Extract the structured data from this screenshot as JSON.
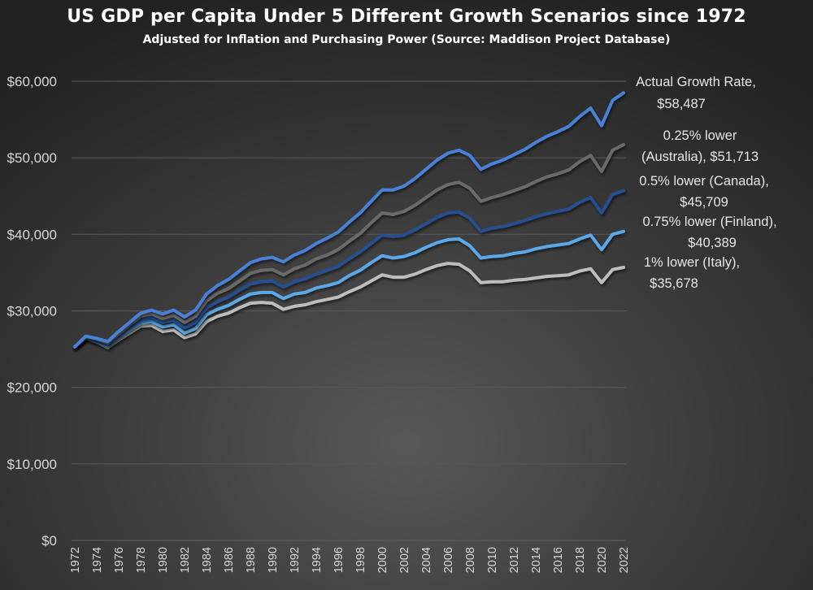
{
  "chart_data": {
    "type": "line",
    "title": "US GDP per Capita Under 5 Different Growth Scenarios since 1972",
    "subtitle": "Adjusted for Inflation and Purchasing Power (Source: Maddison Project Database)",
    "xlabel": "",
    "ylabel": "",
    "ylim": [
      0,
      60000
    ],
    "yticks": [
      0,
      10000,
      20000,
      30000,
      40000,
      50000,
      60000
    ],
    "ytick_labels": [
      "$0",
      "$10,000",
      "$20,000",
      "$30,000",
      "$40,000",
      "$50,000",
      "$60,000"
    ],
    "xlim": [
      1972,
      2022
    ],
    "xtick_labels": [
      "1972",
      "1974",
      "1976",
      "1978",
      "1980",
      "1982",
      "1984",
      "1986",
      "1988",
      "1990",
      "1992",
      "1994",
      "1996",
      "1998",
      "2000",
      "2002",
      "2004",
      "2006",
      "2008",
      "2010",
      "2012",
      "2014",
      "2016",
      "2018",
      "2020",
      "2022"
    ],
    "grid": true,
    "legend": "none (end-of-line data labels on the right)",
    "x_start": 1972,
    "series": [
      {
        "name": "Actual Growth Rate",
        "color": "#4a80d8",
        "label_lines": [
          "Actual Growth Rate,",
          "$58,487"
        ],
        "values": [
          25300,
          26700,
          26400,
          26000,
          27300,
          28500,
          29700,
          30100,
          29600,
          30100,
          29200,
          30100,
          32200,
          33300,
          34100,
          35200,
          36300,
          36800,
          37000,
          36400,
          37300,
          37900,
          38800,
          39500,
          40300,
          41600,
          42800,
          44300,
          45800,
          45800,
          46300,
          47300,
          48500,
          49700,
          50600,
          51000,
          50300,
          48500,
          49200,
          49700,
          50400,
          51100,
          52000,
          52800,
          53400,
          54100,
          55400,
          56500,
          54200,
          57500,
          58487
        ]
      },
      {
        "name": "0.25% lower (Australia)",
        "color": "#6a6a6a",
        "label_lines": [
          "0.25% lower",
          "(Australia), $51,713"
        ],
        "values": [
          25300,
          26600,
          26300,
          25800,
          27000,
          28200,
          29300,
          29600,
          29000,
          29400,
          28500,
          29300,
          31300,
          32300,
          32900,
          33900,
          34900,
          35300,
          35400,
          34700,
          35500,
          36000,
          36800,
          37300,
          38000,
          39100,
          40100,
          41500,
          42800,
          42600,
          43000,
          43800,
          44800,
          45800,
          46500,
          46800,
          46000,
          44300,
          44800,
          45200,
          45700,
          46200,
          46900,
          47500,
          47900,
          48400,
          49500,
          50300,
          48200,
          51000,
          51713
        ]
      },
      {
        "name": "0.5% lower (Canada)",
        "color": "#264f91",
        "label_lines": [
          "0.5% lower (Canada),",
          "$45,709"
        ],
        "values": [
          25300,
          26600,
          26100,
          25600,
          26800,
          27800,
          28800,
          29100,
          28500,
          28800,
          27800,
          28500,
          30400,
          31200,
          31800,
          32700,
          33500,
          33800,
          33900,
          33100,
          33800,
          34200,
          34800,
          35300,
          35800,
          36800,
          37700,
          38800,
          39900,
          39700,
          39900,
          40600,
          41400,
          42200,
          42800,
          42900,
          42100,
          40400,
          40800,
          41000,
          41400,
          41800,
          42300,
          42700,
          43000,
          43300,
          44200,
          44800,
          42800,
          45200,
          45709
        ]
      },
      {
        "name": "0.75% lower (Finland)",
        "color": "#5aa8e8",
        "label_lines": [
          "0.75% lower (Finland),",
          "$40,389"
        ],
        "values": [
          25300,
          26500,
          26000,
          25400,
          26500,
          27500,
          28400,
          28600,
          27900,
          28200,
          27100,
          27700,
          29500,
          30200,
          30700,
          31500,
          32200,
          32400,
          32400,
          31600,
          32200,
          32400,
          33000,
          33300,
          33700,
          34600,
          35300,
          36300,
          37200,
          36900,
          37100,
          37600,
          38300,
          38900,
          39300,
          39400,
          38500,
          36900,
          37100,
          37200,
          37500,
          37700,
          38100,
          38400,
          38600,
          38800,
          39400,
          39900,
          38000,
          40000,
          40389
        ]
      },
      {
        "name": "1% lower (Italy)",
        "color": "#bdbdbd",
        "label_lines": [
          "1% lower (Italy),",
          "$35,678"
        ],
        "values": [
          25300,
          26400,
          25900,
          25200,
          26200,
          27100,
          28000,
          28100,
          27300,
          27500,
          26500,
          27000,
          28600,
          29300,
          29700,
          30400,
          31000,
          31100,
          31000,
          30200,
          30600,
          30800,
          31200,
          31500,
          31800,
          32500,
          33100,
          33900,
          34700,
          34400,
          34400,
          34800,
          35400,
          35900,
          36200,
          36100,
          35200,
          33700,
          33800,
          33800,
          34000,
          34100,
          34300,
          34500,
          34600,
          34700,
          35200,
          35500,
          33700,
          35400,
          35678
        ]
      }
    ]
  }
}
